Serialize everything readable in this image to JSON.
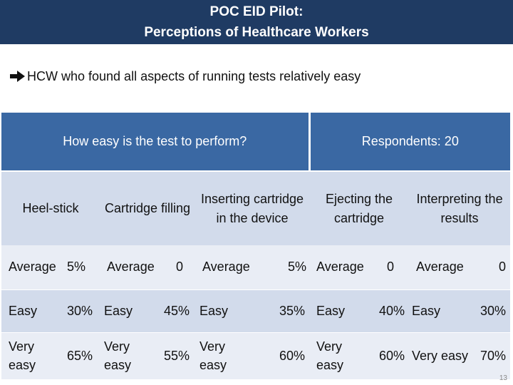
{
  "title": {
    "line1": "POC EID Pilot:",
    "line2": "Perceptions of Healthcare Workers"
  },
  "bullet": {
    "text": "HCW who found all aspects of running tests relatively easy",
    "icon": "arrow-right-icon"
  },
  "table": {
    "question": "How easy is the test to perform?",
    "respondents": "Respondents: 20",
    "columns": [
      "Heel-stick",
      "Cartridge filling",
      "Inserting cartridge in the device",
      "Ejecting the cartridge",
      "Interpreting the results"
    ],
    "rows": [
      {
        "cells": [
          [
            "Average",
            "5%"
          ],
          [
            "Average",
            "0"
          ],
          [
            "Average",
            "5%"
          ],
          [
            "Average",
            "0"
          ],
          [
            "Average",
            "0"
          ]
        ]
      },
      {
        "cells": [
          [
            "Easy",
            "30%"
          ],
          [
            "Easy",
            "45%"
          ],
          [
            "Easy",
            "35%"
          ],
          [
            "Easy",
            "40%"
          ],
          [
            "Easy",
            "30%"
          ]
        ]
      },
      {
        "cells": [
          [
            "Very easy",
            "65%"
          ],
          [
            "Very easy",
            "55%"
          ],
          [
            "Very easy",
            "60%"
          ],
          [
            "Very easy",
            "60%"
          ],
          [
            "Very easy",
            "70%"
          ]
        ]
      }
    ]
  },
  "page_number": "13",
  "colors": {
    "title_bg": "#1f3b63",
    "header_bg": "#3a68a3",
    "row_dark": "#d2dbeb",
    "row_light": "#e9edf5"
  }
}
